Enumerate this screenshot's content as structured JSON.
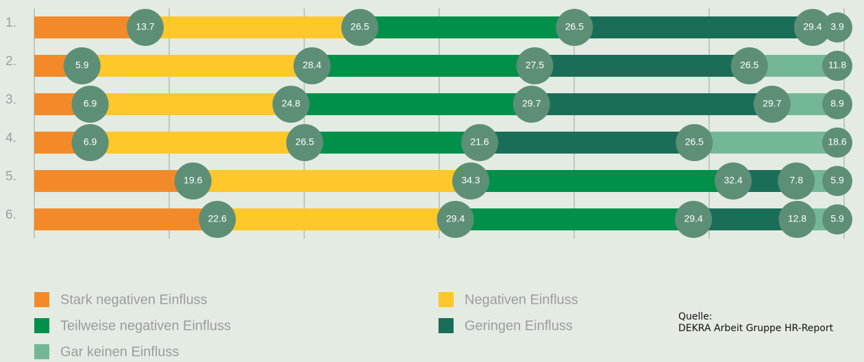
{
  "chart_data": {
    "type": "stacked-bar",
    "categories": [
      "1.",
      "2.",
      "3.",
      "4.",
      "5.",
      "6."
    ],
    "series": [
      {
        "name": "Stark negativen Einfluss",
        "color": "#f28a2a",
        "values": [
          13.7,
          5.9,
          6.9,
          6.9,
          19.6,
          22.6
        ]
      },
      {
        "name": "Negativen Einfluss",
        "color": "#fec72a",
        "values": [
          26.5,
          28.4,
          24.8,
          26.5,
          34.3,
          29.4
        ]
      },
      {
        "name": "Teilweise negativen Einfluss",
        "color": "#00904a",
        "values": [
          26.5,
          27.5,
          29.7,
          21.6,
          32.4,
          29.4
        ]
      },
      {
        "name": "Geringen Einfluss",
        "color": "#1a6e58",
        "values": [
          29.4,
          26.5,
          29.7,
          26.5,
          7.8,
          12.8
        ]
      },
      {
        "name": "Gar keinen Einfluss",
        "color": "#74b797",
        "values": [
          3.9,
          11.8,
          8.9,
          18.6,
          5.9,
          5.9
        ]
      }
    ],
    "xlim": [
      0,
      100
    ],
    "xticks": [
      0,
      16.667,
      33.333,
      50,
      66.667,
      83.333,
      100
    ],
    "grid": true,
    "source": [
      "Quelle:",
      "DEKRA Arbeit Gruppe HR-Report"
    ]
  }
}
